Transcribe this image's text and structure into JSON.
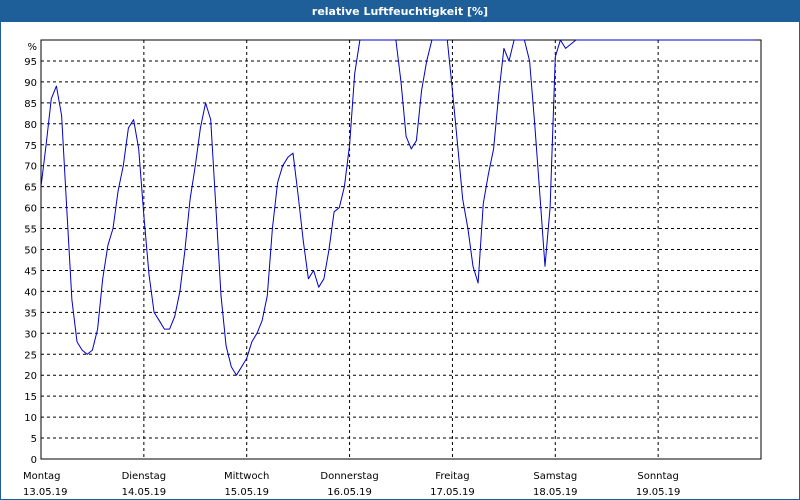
{
  "window": {
    "title": "relative Luftfeuchtigkeit [%]"
  },
  "chart_data": {
    "type": "line",
    "title": "relative Luftfeuchtigkeit [%]",
    "ylabel": "%",
    "ylim": [
      0,
      100
    ],
    "yticks": [
      0,
      5,
      10,
      15,
      20,
      25,
      30,
      35,
      40,
      45,
      50,
      55,
      60,
      65,
      70,
      75,
      80,
      85,
      90,
      95
    ],
    "xlim": [
      0,
      7
    ],
    "grid": true,
    "colors": {
      "line": "#0000c8",
      "grid": "#000000",
      "title_bg": "#1f5f99"
    },
    "day_labels": [
      {
        "x": 0,
        "day": "Montag",
        "date": "13.05.19"
      },
      {
        "x": 1,
        "day": "Dienstag",
        "date": "14.05.19"
      },
      {
        "x": 2,
        "day": "Mittwoch",
        "date": "15.05.19"
      },
      {
        "x": 3,
        "day": "Donnerstag",
        "date": "16.05.19"
      },
      {
        "x": 4,
        "day": "Freitag",
        "date": "17.05.19"
      },
      {
        "x": 5,
        "day": "Samstag",
        "date": "18.05.19"
      },
      {
        "x": 6,
        "day": "Sonntag",
        "date": "19.05.19"
      }
    ],
    "series": [
      {
        "x": [
          0.0,
          0.05,
          0.1,
          0.15,
          0.2,
          0.25,
          0.3,
          0.35,
          0.4,
          0.45,
          0.5,
          0.55,
          0.6,
          0.65,
          0.7,
          0.75,
          0.8,
          0.85,
          0.9,
          0.95,
          1.0,
          1.05,
          1.1,
          1.15,
          1.2,
          1.25,
          1.3,
          1.35,
          1.4,
          1.45,
          1.5,
          1.55,
          1.6,
          1.65,
          1.7,
          1.75,
          1.8,
          1.85,
          1.9,
          1.95,
          2.0,
          2.05,
          2.1,
          2.15,
          2.2,
          2.25,
          2.3,
          2.35,
          2.4,
          2.45,
          2.5,
          2.55,
          2.6,
          2.65,
          2.7,
          2.75,
          2.8,
          2.85,
          2.9,
          2.95,
          3.0,
          3.05,
          3.1,
          3.15,
          3.2,
          3.25,
          3.3,
          3.35,
          3.4,
          3.45,
          3.5,
          3.55,
          3.6,
          3.65,
          3.7,
          3.75,
          3.8,
          3.85,
          3.9,
          3.95,
          4.0,
          4.05,
          4.1,
          4.15,
          4.2,
          4.25,
          4.3,
          4.35,
          4.4,
          4.45,
          4.5,
          4.55,
          4.6,
          4.65,
          4.7,
          4.75,
          4.8,
          4.85,
          4.9,
          4.95,
          5.0,
          5.05,
          5.1,
          5.15,
          5.2,
          5.25,
          5.3,
          5.35,
          5.4,
          5.45,
          5.5,
          5.55,
          5.6,
          5.65,
          5.7,
          5.75,
          5.8,
          5.85,
          5.9,
          5.95,
          6.0,
          6.05,
          6.1,
          6.15,
          6.2,
          6.25,
          6.3,
          6.35,
          6.4,
          6.45,
          6.5,
          6.55,
          6.6,
          6.65,
          6.7,
          6.75,
          6.8,
          6.85,
          6.9,
          6.95
        ],
        "values": [
          65,
          75,
          86,
          89,
          82,
          60,
          38,
          28,
          26,
          25,
          26,
          31,
          43,
          51,
          55,
          64,
          70,
          79,
          81,
          74,
          58,
          44,
          35,
          33,
          31,
          31,
          34,
          40,
          50,
          62,
          70,
          79,
          85,
          81,
          60,
          39,
          27,
          22,
          20,
          22,
          24,
          28,
          30,
          33,
          39,
          55,
          66,
          70,
          72,
          73,
          63,
          52,
          43,
          45,
          41,
          43,
          50,
          59,
          60,
          65,
          75,
          92,
          100,
          100,
          100,
          100,
          100,
          100,
          100,
          100,
          90,
          77,
          74,
          76,
          88,
          95,
          100,
          100,
          100,
          100,
          88,
          75,
          62,
          55,
          46,
          42,
          61,
          68,
          74,
          87,
          98,
          95,
          100,
          100,
          100,
          95,
          80,
          63,
          46,
          60,
          96,
          100,
          98,
          99,
          100,
          100,
          100,
          100,
          100,
          100,
          100,
          100,
          100,
          100,
          100,
          100,
          100,
          100,
          100,
          100,
          100,
          100,
          100,
          100,
          100,
          100,
          100,
          100,
          100,
          100,
          100,
          100,
          100,
          100,
          100,
          100,
          100,
          100,
          100,
          100
        ]
      }
    ]
  }
}
